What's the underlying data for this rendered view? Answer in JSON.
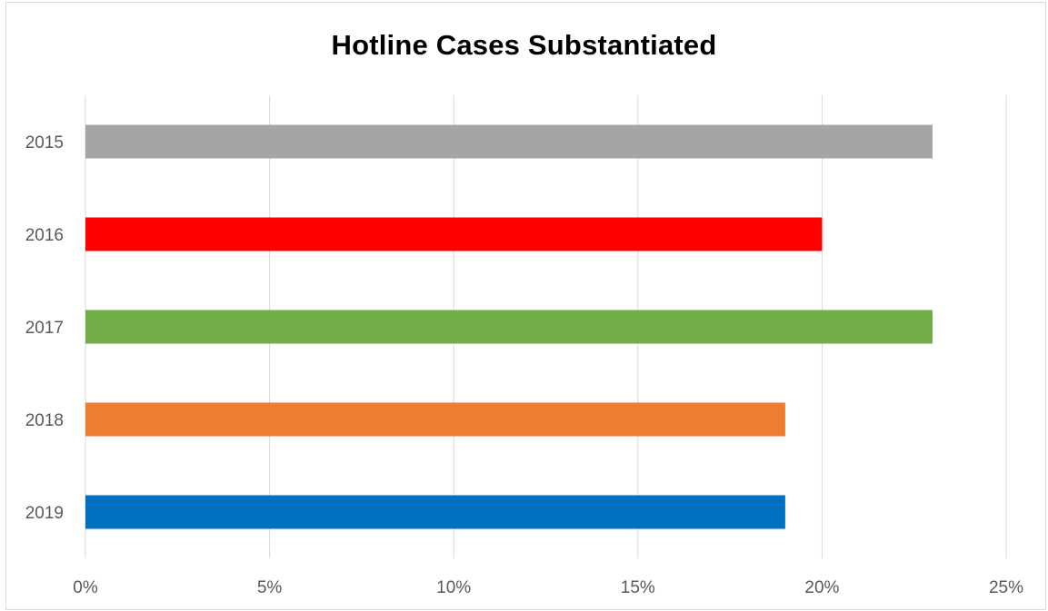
{
  "chart_data": {
    "type": "bar",
    "orientation": "horizontal",
    "title": "Hotline Cases Substantiated",
    "xlabel": "",
    "ylabel": "",
    "categories": [
      "2015",
      "2016",
      "2017",
      "2018",
      "2019"
    ],
    "values": [
      23,
      20,
      23,
      19,
      19
    ],
    "bar_colors": [
      "#a5a5a5",
      "#ff0000",
      "#70ad47",
      "#ed7d31",
      "#0070c0"
    ],
    "value_unit": "%",
    "xlim": [
      0,
      25
    ],
    "x_ticks": [
      "0%",
      "5%",
      "10%",
      "15%",
      "20%",
      "25%"
    ],
    "x_tick_values": [
      0,
      5,
      10,
      15,
      20,
      25
    ],
    "grid": true,
    "legend": "none"
  }
}
